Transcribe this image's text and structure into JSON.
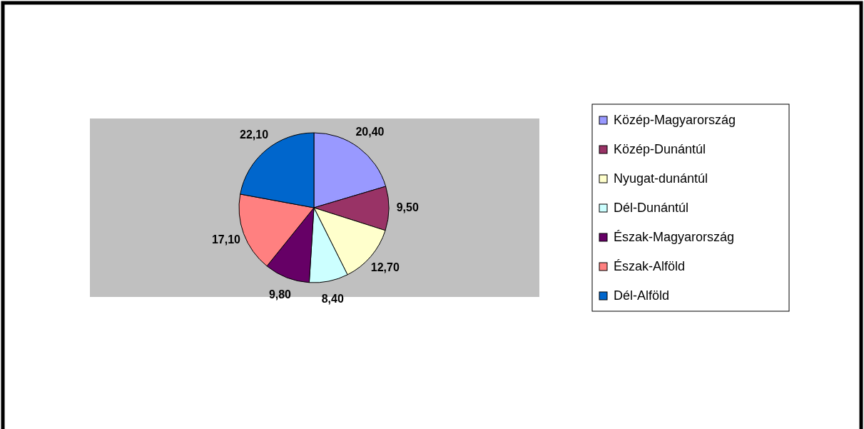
{
  "chart_data": {
    "type": "pie",
    "categories": [
      "Közép-Magyarország",
      "Közép-Dunántúl",
      "Nyugat-dunántúl",
      "Dél-Dunántúl",
      "Észak-Magyarország",
      "Észak-Alföld",
      "Dél-Alföld"
    ],
    "values": [
      20.4,
      9.5,
      12.7,
      8.4,
      9.8,
      17.1,
      22.1
    ],
    "value_labels": [
      "20,40",
      "9,50",
      "12,70",
      "8,40",
      "9,80",
      "17,10",
      "22,10"
    ],
    "colors": [
      "#9999ff",
      "#993366",
      "#ffffcc",
      "#ccffff",
      "#660066",
      "#ff8080",
      "#0066cc"
    ],
    "legend": "right"
  }
}
